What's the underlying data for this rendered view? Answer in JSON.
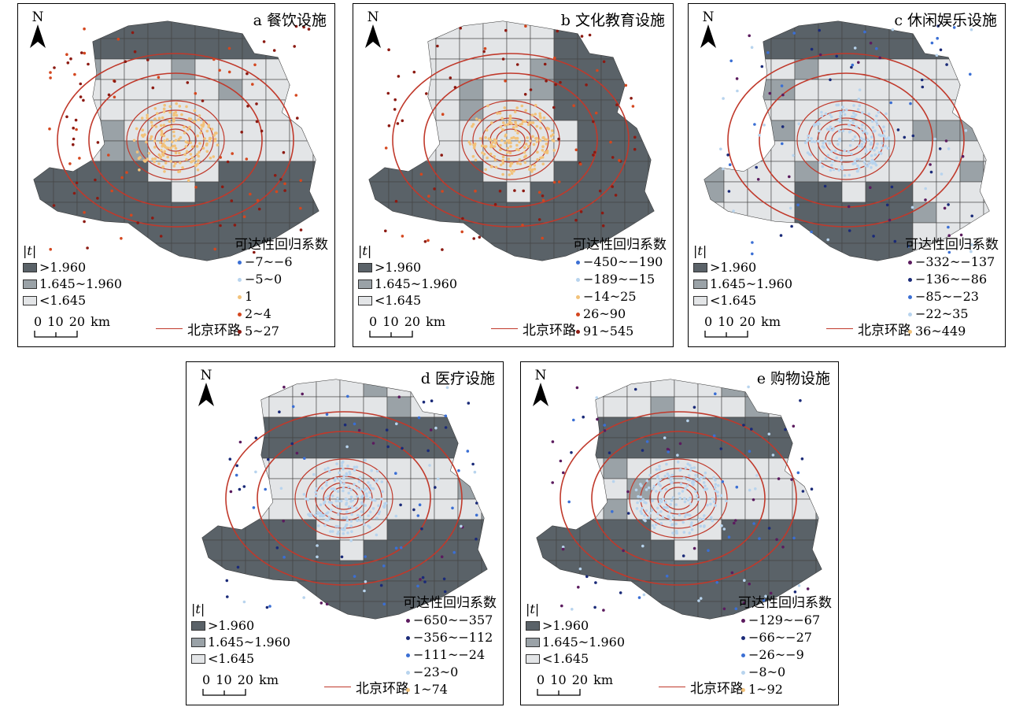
{
  "t_legend": {
    "header": "|t|",
    "items": [
      {
        "label": ">1.960",
        "color": "#5a6268"
      },
      {
        "label": "1.645~1.960",
        "color": "#9aa2a7"
      },
      {
        "label": "<1.645",
        "color": "#e3e5e7"
      }
    ]
  },
  "scale_label": "0  10 20 km",
  "road_label": "北京环路",
  "coef_header": "可达性回归系数",
  "panels": [
    {
      "title": "a 餐饮设施",
      "north": "N",
      "classes": [
        {
          "label": "−7~−6",
          "color": "#3b6fd4"
        },
        {
          "label": "−5~0",
          "color": "#b8d4ee"
        },
        {
          "label": "1",
          "color": "#f2c27a"
        },
        {
          "label": "2~4",
          "color": "#d4471f"
        },
        {
          "label": "5~27",
          "color": "#8c1a12"
        }
      ]
    },
    {
      "title": "b 文化教育设施",
      "north": "N",
      "classes": [
        {
          "label": "−450~−190",
          "color": "#3b6fd4"
        },
        {
          "label": "−189~−15",
          "color": "#b8d4ee"
        },
        {
          "label": "−14~25",
          "color": "#f2c27a"
        },
        {
          "label": "26~90",
          "color": "#d4471f"
        },
        {
          "label": "91~545",
          "color": "#8c1a12"
        }
      ]
    },
    {
      "title": "c 休闲娱乐设施",
      "north": "N",
      "classes": [
        {
          "label": "−332~−137",
          "color": "#5b1b5e"
        },
        {
          "label": "−136~−86",
          "color": "#1a2a78"
        },
        {
          "label": "−85~−23",
          "color": "#3b6fd4"
        },
        {
          "label": "−22~35",
          "color": "#b8d4ee"
        },
        {
          "label": "36~449",
          "color": "#f2c27a"
        }
      ]
    },
    {
      "title": "d 医疗设施",
      "north": "N",
      "classes": [
        {
          "label": "−650~−357",
          "color": "#5b1b5e"
        },
        {
          "label": "−356~−112",
          "color": "#1a2a78"
        },
        {
          "label": "−111~−24",
          "color": "#3b6fd4"
        },
        {
          "label": "−23~0",
          "color": "#b8d4ee"
        },
        {
          "label": "1~74",
          "color": "#f2c27a"
        }
      ]
    },
    {
      "title": "e 购物设施",
      "north": "N",
      "classes": [
        {
          "label": "−129~−67",
          "color": "#5b1b5e"
        },
        {
          "label": "−66~−27",
          "color": "#1a2a78"
        },
        {
          "label": "−26~−9",
          "color": "#3b6fd4"
        },
        {
          "label": "−8~0",
          "color": "#b8d4ee"
        },
        {
          "label": "1~92",
          "color": "#f2c27a"
        }
      ]
    }
  ]
}
